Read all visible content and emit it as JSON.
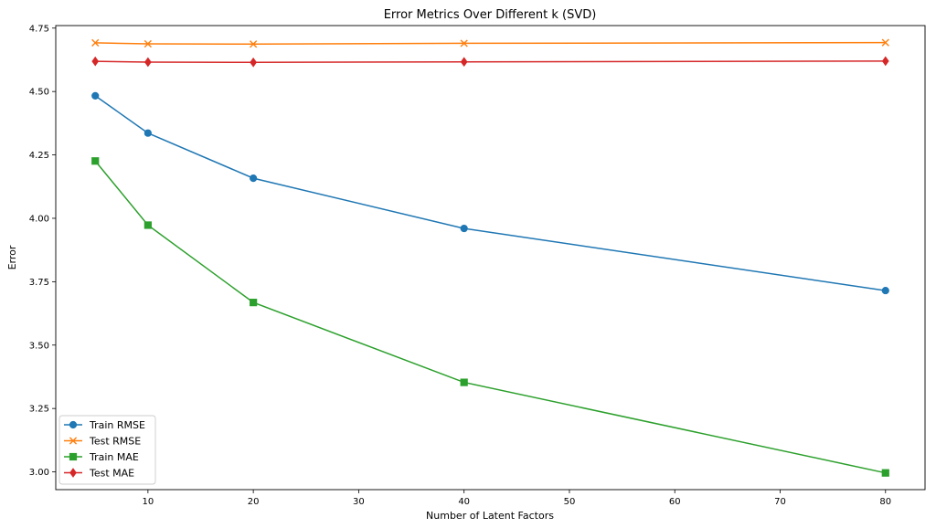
{
  "chart_data": {
    "type": "line",
    "title": "Error Metrics Over Different k (SVD)",
    "xlabel": "Number of Latent Factors",
    "ylabel": "Error",
    "x": [
      5,
      10,
      20,
      40,
      80
    ],
    "xlim": [
      1.25,
      83.75
    ],
    "ylim": [
      2.93,
      4.76
    ],
    "xticks": [
      10,
      20,
      30,
      40,
      50,
      60,
      70,
      80
    ],
    "yticks": [
      3.0,
      3.25,
      3.5,
      3.75,
      4.0,
      4.25,
      4.5,
      4.75
    ],
    "ytick_format": 2,
    "grid": false,
    "legend_position": "lower-left",
    "series": [
      {
        "name": "Train RMSE",
        "color": "#1f77b4",
        "marker": "circle",
        "values": [
          4.483,
          4.336,
          4.158,
          3.96,
          3.715
        ]
      },
      {
        "name": "Test RMSE",
        "color": "#ff7f0e",
        "marker": "x",
        "values": [
          4.692,
          4.688,
          4.687,
          4.69,
          4.693
        ]
      },
      {
        "name": "Train MAE",
        "color": "#2ca02c",
        "marker": "square",
        "values": [
          4.226,
          3.973,
          3.668,
          3.353,
          2.996
        ]
      },
      {
        "name": "Test MAE",
        "color": "#d62728",
        "marker": "diamond",
        "values": [
          4.619,
          4.616,
          4.615,
          4.617,
          4.62
        ]
      }
    ]
  }
}
